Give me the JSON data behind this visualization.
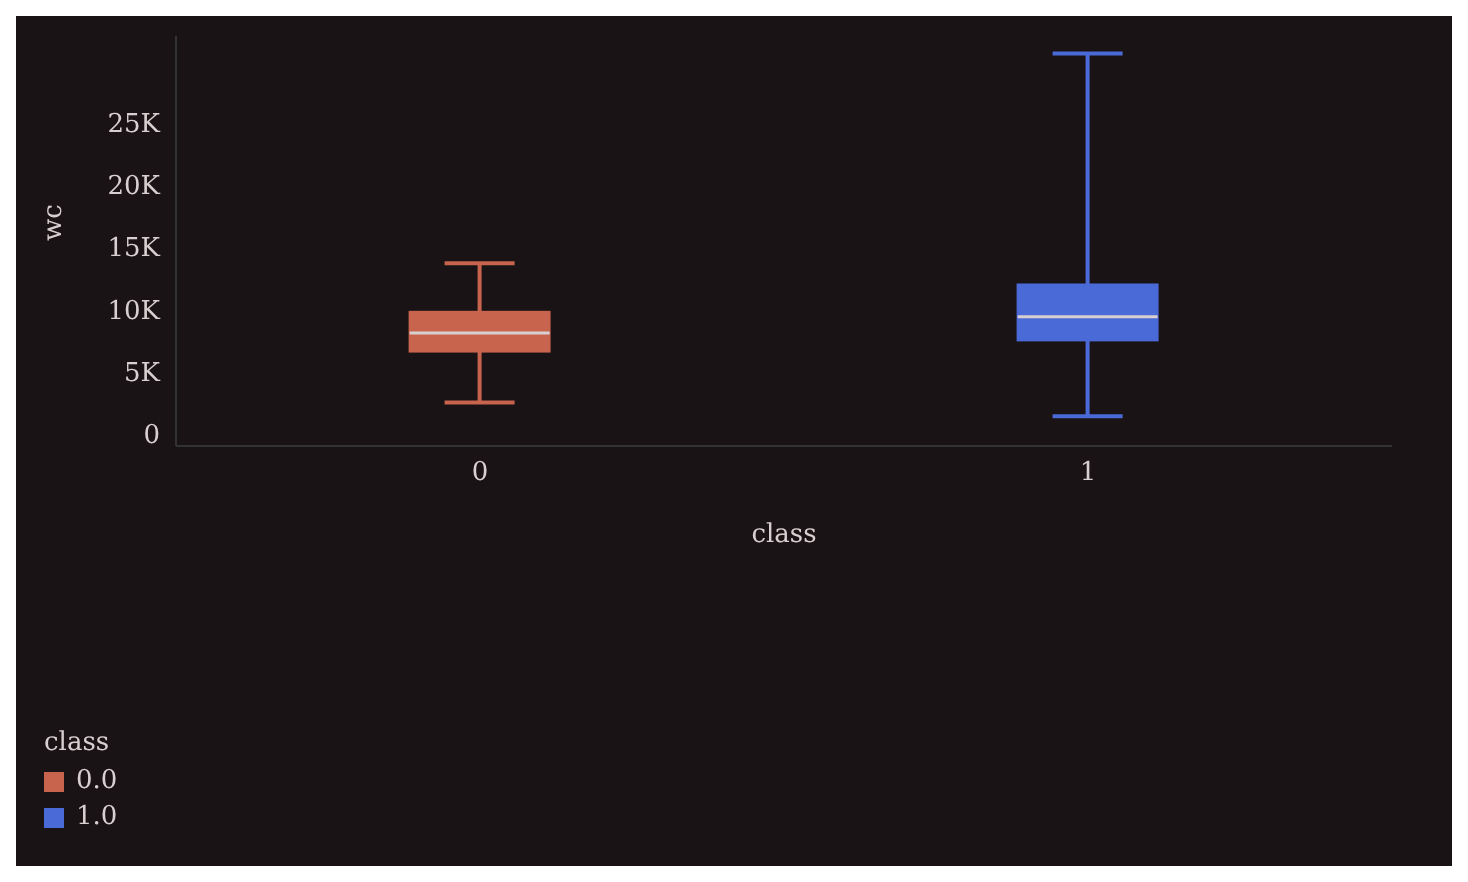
{
  "chart_data": {
    "type": "box",
    "xlabel": "class",
    "ylabel": "wc",
    "legend_title": "class",
    "categories": [
      "0",
      "1"
    ],
    "series": [
      {
        "name": "0.0",
        "color": "#c8644e",
        "boxes": [
          {
            "low": 2500,
            "q1": 6600,
            "median": 8100,
            "q3": 9800,
            "high": 13700
          },
          null
        ]
      },
      {
        "name": "1.0",
        "color": "#4a6ad8",
        "boxes": [
          null,
          {
            "low": 1400,
            "q1": 7500,
            "median": 9400,
            "q3": 12000,
            "high": 30600
          }
        ]
      }
    ],
    "ylim": [
      -1000,
      32000
    ],
    "yticks": [
      0,
      {
        "value": 5000,
        "label": "5K"
      },
      {
        "value": 10000,
        "label": "10K"
      },
      {
        "value": 15000,
        "label": "15K"
      },
      {
        "value": 20000,
        "label": "20K"
      },
      {
        "value": 25000,
        "label": "25K"
      }
    ],
    "grid": false,
    "legend": "bottom left"
  }
}
